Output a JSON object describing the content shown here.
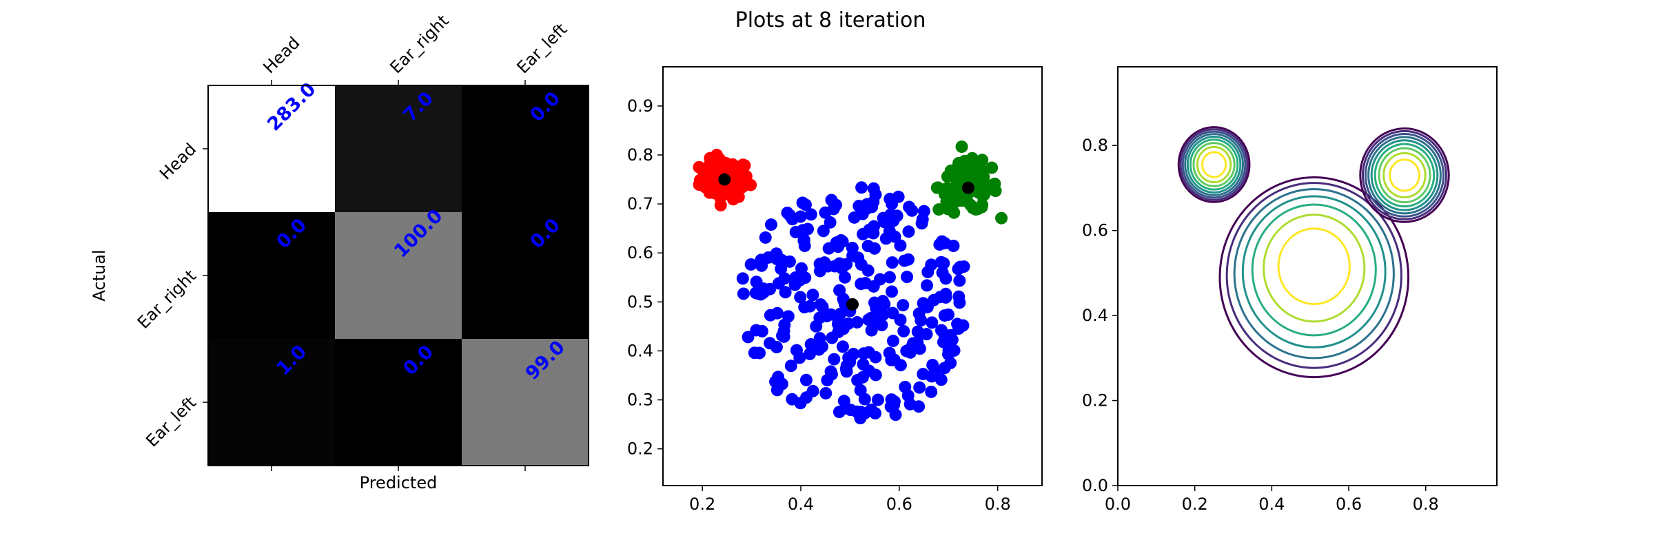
{
  "figure": {
    "title": "Plots at 8 iteration"
  },
  "chart_data": [
    {
      "type": "heatmap",
      "xlabel": "Predicted",
      "ylabel": "Actual",
      "x_categories": [
        "Head",
        "Ear_right",
        "Ear_left"
      ],
      "y_categories": [
        "Head",
        "Ear_right",
        "Ear_left"
      ],
      "matrix": [
        [
          283.0,
          7.0,
          0.0
        ],
        [
          0.0,
          100.0,
          0.0
        ],
        [
          1.0,
          0.0,
          99.0
        ]
      ],
      "value_labels": [
        [
          "283.0",
          "7.0",
          "0.0"
        ],
        [
          "0.0",
          "100.0",
          "0.0"
        ],
        [
          "1.0",
          "0.0",
          "99.0"
        ]
      ],
      "colormap": "gray",
      "label_color": "#0000ff"
    },
    {
      "type": "scatter",
      "xlim": [
        0.12,
        0.89
      ],
      "ylim": [
        0.125,
        0.98
      ],
      "x_ticks": [
        0.2,
        0.4,
        0.6,
        0.8
      ],
      "x_tick_labels": [
        "0.2",
        "0.4",
        "0.6",
        "0.8"
      ],
      "y_ticks": [
        0.2,
        0.3,
        0.4,
        0.5,
        0.6,
        0.7,
        0.8,
        0.9
      ],
      "y_tick_labels": [
        "0.2",
        "0.3",
        "0.4",
        "0.5",
        "0.6",
        "0.7",
        "0.8",
        "0.9"
      ],
      "clusters": [
        {
          "color": "#ff0000",
          "center": [
            0.245,
            0.75
          ],
          "spread": [
            0.025,
            0.02
          ],
          "count": 100,
          "xrange": [
            0.14,
            0.36
          ],
          "yrange": [
            0.67,
            0.84
          ]
        },
        {
          "color": "#0000ff",
          "center": [
            0.51,
            0.49
          ],
          "spread": [
            0.085,
            0.12
          ],
          "count": 290,
          "xrange": [
            0.27,
            0.74
          ],
          "yrange": [
            0.26,
            0.75
          ]
        },
        {
          "color": "#008000",
          "center": [
            0.74,
            0.735
          ],
          "spread": [
            0.03,
            0.025
          ],
          "count": 100,
          "xrange": [
            0.63,
            0.86
          ],
          "yrange": [
            0.63,
            0.84
          ]
        }
      ],
      "centroids": [
        [
          0.245,
          0.75
        ],
        [
          0.505,
          0.495
        ],
        [
          0.74,
          0.733
        ]
      ],
      "centroid_color": "#000000"
    },
    {
      "type": "contour",
      "xlim": [
        0.0,
        0.985
      ],
      "ylim": [
        0.0,
        0.985
      ],
      "x_ticks": [
        0.0,
        0.2,
        0.4,
        0.6,
        0.8
      ],
      "x_tick_labels": [
        "0.0",
        "0.2",
        "0.4",
        "0.6",
        "0.8"
      ],
      "y_ticks": [
        0.0,
        0.2,
        0.4,
        0.6,
        0.8
      ],
      "y_tick_labels": [
        "0.0",
        "0.2",
        "0.4",
        "0.6",
        "0.8"
      ],
      "levels": 9,
      "colormap": "viridis",
      "components": [
        {
          "center": [
            0.25,
            0.755
          ],
          "radius": [
            0.092,
            0.088
          ],
          "rings": 9
        },
        {
          "center": [
            0.51,
            0.49
          ],
          "radius": [
            0.245,
            0.235
          ],
          "rings": 7
        },
        {
          "center": [
            0.745,
            0.73
          ],
          "radius": [
            0.115,
            0.11
          ],
          "rings": 9
        }
      ]
    }
  ]
}
